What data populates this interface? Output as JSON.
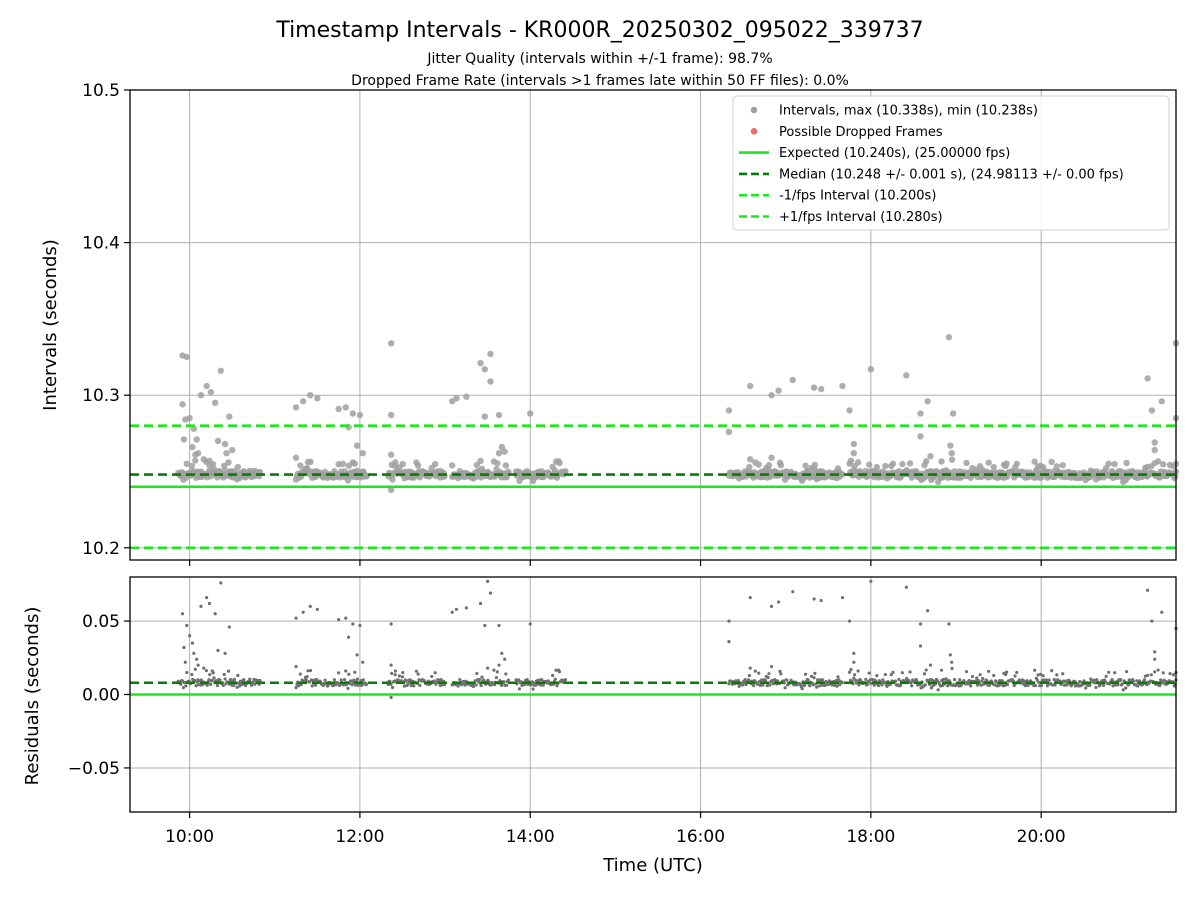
{
  "chart_data": [
    {
      "panel": "intervals",
      "type": "scatter",
      "title": "Timestamp Intervals - KR000R_20250302_095022_339737",
      "subtitle_lines": [
        "Jitter Quality (intervals within +/-1 frame): 98.7%",
        "Dropped Frame Rate (intervals >1 frames late within 50 FF files): 0.0%"
      ],
      "xlabel": "",
      "ylabel": "Intervals (seconds)",
      "xlim": [
        "09:18",
        "21:35"
      ],
      "ylim": [
        10.192,
        10.5
      ],
      "yticks": [
        10.2,
        10.3,
        10.4,
        10.5
      ],
      "ytick_labels": [
        "10.2",
        "10.3",
        "10.4",
        "10.5"
      ],
      "grid": true,
      "legend_position": "top-right",
      "legend": [
        {
          "label": "Intervals, max (10.338s), min (10.238s)",
          "kind": "marker",
          "color": "#a0a0a0"
        },
        {
          "label": "Possible Dropped Frames",
          "kind": "marker",
          "color": "#f06b6b"
        },
        {
          "label": "Expected (10.240s), (25.00000 fps)",
          "kind": "solid",
          "color": "#1ee61e"
        },
        {
          "label": "Median (10.248 +/- 0.001 s), (24.98113 +/- 0.00 fps)",
          "kind": "dashed",
          "color": "#0a7a0a"
        },
        {
          "label": "-1/fps Interval (10.200s)",
          "kind": "dashed",
          "color": "#1ee61e"
        },
        {
          "label": "+1/fps Interval (10.280s)",
          "kind": "dashed",
          "color": "#1ee61e"
        }
      ],
      "reference_lines": [
        {
          "name": "Expected",
          "y": 10.24,
          "style": "solid",
          "color": "#1ee61e"
        },
        {
          "name": "Median",
          "y": 10.248,
          "style": "dashed",
          "color": "#0a7a0a"
        },
        {
          "name": "-1/fps Interval",
          "y": 10.2,
          "style": "dashed",
          "color": "#1ee61e"
        },
        {
          "name": "+1/fps Interval",
          "y": 10.28,
          "style": "dashed",
          "color": "#1ee61e"
        }
      ],
      "baseline_series": {
        "name": "Intervals",
        "color": "#a0a0a0",
        "y": 10.248,
        "segments": [
          [
            "09:52",
            "10:50"
          ],
          [
            "11:15",
            "12:05"
          ],
          [
            "12:20",
            "13:00"
          ],
          [
            "13:05",
            "13:45"
          ],
          [
            "13:50",
            "14:25"
          ],
          [
            "16:20",
            "17:40"
          ],
          [
            "17:45",
            "18:50"
          ],
          [
            "18:50",
            "21:35"
          ]
        ]
      },
      "outliers": [
        [
          "09:55",
          10.326
        ],
        [
          "09:58",
          10.325
        ],
        [
          "09:55",
          10.294
        ],
        [
          "09:57",
          10.284
        ],
        [
          "10:00",
          10.285
        ],
        [
          "10:03",
          10.278
        ],
        [
          "10:05",
          10.271
        ],
        [
          "10:08",
          10.3
        ],
        [
          "10:12",
          10.306
        ],
        [
          "10:15",
          10.302
        ],
        [
          "10:18",
          10.295
        ],
        [
          "10:22",
          10.316
        ],
        [
          "10:25",
          10.268
        ],
        [
          "10:28",
          10.286
        ],
        [
          "10:20",
          10.27
        ],
        [
          "09:56",
          10.271
        ],
        [
          "10:02",
          10.266
        ],
        [
          "10:06",
          10.262
        ],
        [
          "10:10",
          10.258
        ],
        [
          "10:14",
          10.257
        ],
        [
          "10:30",
          10.264
        ],
        [
          "10:26",
          10.262
        ],
        [
          "10:04",
          10.261
        ],
        [
          "11:15",
          10.292
        ],
        [
          "11:20",
          10.296
        ],
        [
          "11:25",
          10.3
        ],
        [
          "11:30",
          10.298
        ],
        [
          "11:45",
          10.291
        ],
        [
          "11:50",
          10.292
        ],
        [
          "11:55",
          10.288
        ],
        [
          "12:00",
          10.287
        ],
        [
          "11:52",
          10.279
        ],
        [
          "11:58",
          10.267
        ],
        [
          "12:02",
          10.262
        ],
        [
          "11:15",
          10.259
        ],
        [
          "11:48",
          10.255
        ],
        [
          "11:55",
          10.256
        ],
        [
          "12:22",
          10.334
        ],
        [
          "12:22",
          10.287
        ],
        [
          "12:22",
          10.261
        ],
        [
          "12:22",
          10.238
        ],
        [
          "12:25",
          10.256
        ],
        [
          "13:05",
          10.296
        ],
        [
          "13:08",
          10.298
        ],
        [
          "13:15",
          10.299
        ],
        [
          "13:25",
          10.321
        ],
        [
          "13:28",
          10.317
        ],
        [
          "13:32",
          10.327
        ],
        [
          "13:32",
          10.309
        ],
        [
          "13:28",
          10.286
        ],
        [
          "13:38",
          10.287
        ],
        [
          "13:05",
          10.254
        ],
        [
          "13:25",
          10.257
        ],
        [
          "13:38",
          10.262
        ],
        [
          "13:40",
          10.266
        ],
        [
          "13:42",
          10.263
        ],
        [
          "14:00",
          10.288
        ],
        [
          "16:20",
          10.29
        ],
        [
          "16:20",
          10.276
        ],
        [
          "16:35",
          10.306
        ],
        [
          "16:35",
          10.258
        ],
        [
          "16:50",
          10.3
        ],
        [
          "16:55",
          10.303
        ],
        [
          "17:05",
          10.31
        ],
        [
          "17:20",
          10.305
        ],
        [
          "17:25",
          10.304
        ],
        [
          "16:50",
          10.259
        ],
        [
          "17:40",
          10.306
        ],
        [
          "17:45",
          10.29
        ],
        [
          "17:48",
          10.268
        ],
        [
          "17:48",
          10.262
        ],
        [
          "17:46",
          10.257
        ],
        [
          "18:00",
          10.317
        ],
        [
          "18:25",
          10.313
        ],
        [
          "18:35",
          10.288
        ],
        [
          "18:35",
          10.273
        ],
        [
          "18:40",
          10.296
        ],
        [
          "18:42",
          10.26
        ],
        [
          "18:55",
          10.338
        ],
        [
          "18:58",
          10.288
        ],
        [
          "18:56",
          10.267
        ],
        [
          "18:57",
          10.262
        ],
        [
          "21:15",
          10.311
        ],
        [
          "21:18",
          10.29
        ],
        [
          "21:20",
          10.269
        ],
        [
          "21:25",
          10.296
        ],
        [
          "21:15",
          10.253
        ],
        [
          "21:20",
          10.264
        ],
        [
          "21:35",
          10.334
        ],
        [
          "21:35",
          10.285
        ],
        [
          "21:35",
          10.255
        ]
      ]
    },
    {
      "panel": "residuals",
      "type": "scatter",
      "xlabel": "Time (UTC)",
      "ylabel": "Residuals (seconds)",
      "xlim": [
        "09:18",
        "21:35"
      ],
      "ylim": [
        -0.08,
        0.08
      ],
      "yticks": [
        -0.05,
        0.0,
        0.05
      ],
      "ytick_labels": [
        "−0.05",
        "0.00",
        "0.05"
      ],
      "xticks": [
        "10:00",
        "12:00",
        "14:00",
        "16:00",
        "18:00",
        "20:00"
      ],
      "grid": true,
      "reference_lines": [
        {
          "name": "Expected",
          "y": 0.0,
          "style": "solid",
          "color": "#1ee61e"
        },
        {
          "name": "Median",
          "y": 0.008,
          "style": "dashed",
          "color": "#0a7a0a"
        }
      ],
      "baseline_series": {
        "name": "Residuals",
        "color": "#707070",
        "y": 0.008,
        "segments": [
          [
            "09:52",
            "10:50"
          ],
          [
            "11:15",
            "12:05"
          ],
          [
            "12:20",
            "13:00"
          ],
          [
            "13:05",
            "13:45"
          ],
          [
            "13:50",
            "14:25"
          ],
          [
            "16:20",
            "17:40"
          ],
          [
            "17:45",
            "18:50"
          ],
          [
            "18:50",
            "21:35"
          ]
        ]
      },
      "outliers": [
        [
          "09:55",
          0.055
        ],
        [
          "09:58",
          0.047
        ],
        [
          "09:56",
          0.032
        ],
        [
          "10:00",
          0.04
        ],
        [
          "10:02",
          0.035
        ],
        [
          "10:03",
          0.028
        ],
        [
          "10:05",
          0.024
        ],
        [
          "10:08",
          0.06
        ],
        [
          "10:12",
          0.066
        ],
        [
          "10:14",
          0.062
        ],
        [
          "10:18",
          0.055
        ],
        [
          "10:22",
          0.076
        ],
        [
          "10:25",
          0.028
        ],
        [
          "10:28",
          0.046
        ],
        [
          "09:57",
          0.022
        ],
        [
          "10:06",
          0.02
        ],
        [
          "10:10",
          0.018
        ],
        [
          "10:20",
          0.03
        ],
        [
          "10:16",
          0.016
        ],
        [
          "11:15",
          0.052
        ],
        [
          "11:20",
          0.056
        ],
        [
          "11:25",
          0.06
        ],
        [
          "11:30",
          0.058
        ],
        [
          "11:45",
          0.051
        ],
        [
          "11:50",
          0.052
        ],
        [
          "11:55",
          0.048
        ],
        [
          "12:00",
          0.047
        ],
        [
          "11:52",
          0.039
        ],
        [
          "11:58",
          0.027
        ],
        [
          "12:02",
          0.022
        ],
        [
          "11:15",
          0.019
        ],
        [
          "11:50",
          0.016
        ],
        [
          "12:22",
          0.048
        ],
        [
          "12:22",
          0.02
        ],
        [
          "12:22",
          -0.002
        ],
        [
          "12:25",
          0.016
        ],
        [
          "12:30",
          0.012
        ],
        [
          "13:05",
          0.056
        ],
        [
          "13:08",
          0.058
        ],
        [
          "13:15",
          0.059
        ],
        [
          "13:25",
          0.062
        ],
        [
          "13:28",
          0.047
        ],
        [
          "13:30",
          0.077
        ],
        [
          "13:32",
          0.069
        ],
        [
          "13:38",
          0.047
        ],
        [
          "13:40",
          0.028
        ],
        [
          "13:42",
          0.024
        ],
        [
          "13:38",
          0.02
        ],
        [
          "13:30",
          0.018
        ],
        [
          "14:00",
          0.048
        ],
        [
          "16:20",
          0.05
        ],
        [
          "16:20",
          0.036
        ],
        [
          "16:35",
          0.066
        ],
        [
          "16:35",
          0.018
        ],
        [
          "16:50",
          0.06
        ],
        [
          "16:55",
          0.063
        ],
        [
          "17:05",
          0.07
        ],
        [
          "17:20",
          0.065
        ],
        [
          "17:25",
          0.064
        ],
        [
          "16:50",
          0.019
        ],
        [
          "17:40",
          0.066
        ],
        [
          "17:45",
          0.05
        ],
        [
          "17:48",
          0.028
        ],
        [
          "17:48",
          0.022
        ],
        [
          "17:46",
          0.017
        ],
        [
          "18:00",
          0.077
        ],
        [
          "18:25",
          0.073
        ],
        [
          "18:35",
          0.048
        ],
        [
          "18:35",
          0.033
        ],
        [
          "18:40",
          0.057
        ],
        [
          "18:42",
          0.02
        ],
        [
          "18:55",
          0.048
        ],
        [
          "18:56",
          0.027
        ],
        [
          "18:57",
          0.022
        ],
        [
          "21:15",
          0.071
        ],
        [
          "21:18",
          0.05
        ],
        [
          "21:20",
          0.029
        ],
        [
          "21:25",
          0.056
        ],
        [
          "21:15",
          0.013
        ],
        [
          "21:20",
          0.024
        ],
        [
          "21:35",
          0.045
        ],
        [
          "21:35",
          0.015
        ]
      ]
    }
  ]
}
